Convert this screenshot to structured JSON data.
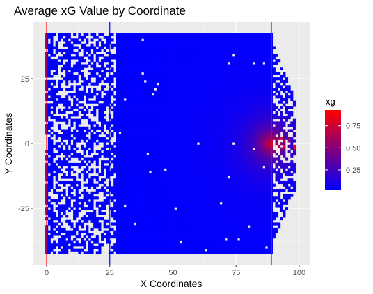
{
  "chart_data": {
    "type": "heatmap",
    "title": "Average xG Value by Coordinate",
    "xlabel": "X Coordinates",
    "ylabel": "Y Coordinates",
    "xlim": [
      -3,
      104
    ],
    "ylim": [
      -45,
      45
    ],
    "x_ticks": [
      0,
      25,
      50,
      75,
      100
    ],
    "x_tick_labels": [
      "0",
      "25",
      "50",
      "75",
      "100"
    ],
    "y_ticks": [
      -25,
      0,
      25
    ],
    "y_tick_labels": [
      "-25",
      "0",
      "25"
    ],
    "grid": true,
    "cell_size": 1,
    "data_extent": {
      "x": [
        0,
        98
      ],
      "y": [
        -42,
        42
      ]
    },
    "reference_lines": [
      {
        "x": 0,
        "color": "#ff0000"
      },
      {
        "x": 25,
        "color": "#0000ff"
      },
      {
        "x": 89,
        "color": "#ff0000"
      }
    ],
    "color_scale": {
      "low_color": "#0000ff",
      "high_color": "#ff0000",
      "min": 0.02,
      "max": 0.93
    },
    "legend": {
      "title": "xg",
      "placement": "right",
      "ticks": [
        0.25,
        0.5,
        0.75
      ],
      "tick_labels": [
        "0.25",
        "0.50",
        "0.75"
      ]
    }
  }
}
